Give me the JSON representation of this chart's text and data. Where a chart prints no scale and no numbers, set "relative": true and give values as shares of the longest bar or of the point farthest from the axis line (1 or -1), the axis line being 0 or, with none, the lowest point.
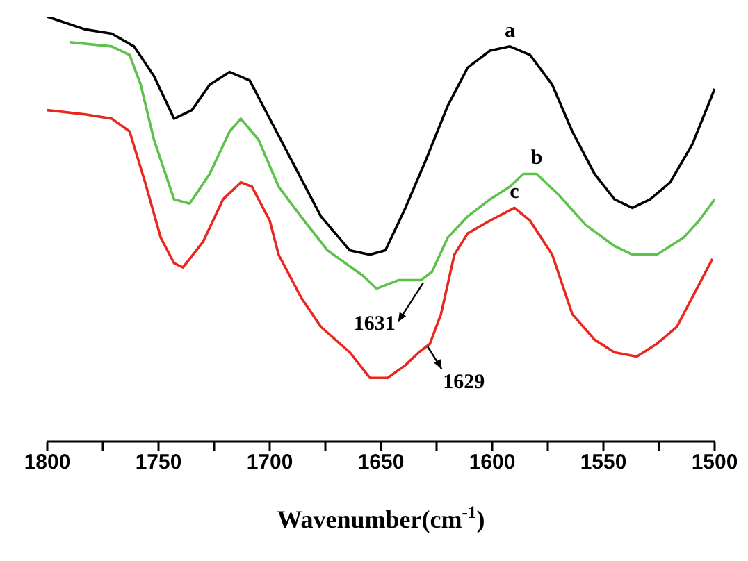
{
  "chart_data": {
    "type": "line",
    "relative": true,
    "xlabel": "Wavenumber(cm$^{-1}$)",
    "xlim": [
      1800,
      1500
    ],
    "xticks": [
      1800,
      {
        "value": 1775,
        "label": null
      },
      1750,
      {
        "value": 1725,
        "label": null
      },
      1700,
      {
        "value": 1675,
        "label": null
      },
      1650,
      {
        "value": 1625,
        "label": null
      },
      1600,
      {
        "value": 1575,
        "label": null
      },
      1550,
      {
        "value": 1525,
        "label": null
      },
      1500
    ],
    "tick_labels": "x",
    "grid": false,
    "legend": false,
    "marker": "none",
    "line_style": "solid",
    "series": [
      {
        "name": "a",
        "color": "#000000",
        "x": [
          1800,
          1783,
          1771,
          1761,
          1752,
          1743,
          1735,
          1727,
          1718,
          1709,
          1697,
          1689,
          1677,
          1664,
          1655,
          1648,
          1639,
          1630,
          1620,
          1611,
          1601,
          1592,
          1583,
          1573,
          1564,
          1554,
          1545,
          1537,
          1529,
          1520,
          1510,
          1500
        ],
        "values": [
          1.0,
          0.97,
          0.96,
          0.93,
          0.86,
          0.76,
          0.78,
          0.84,
          0.87,
          0.85,
          0.73,
          0.65,
          0.53,
          0.45,
          0.44,
          0.45,
          0.55,
          0.66,
          0.79,
          0.88,
          0.92,
          0.93,
          0.91,
          0.84,
          0.73,
          0.63,
          0.57,
          0.55,
          0.57,
          0.61,
          0.7,
          0.83
        ]
      },
      {
        "name": "b",
        "color": "#5cc24a",
        "x": [
          1790,
          1771,
          1763,
          1758,
          1752,
          1743,
          1736,
          1727,
          1718,
          1713,
          1705,
          1696,
          1686,
          1674,
          1658,
          1652,
          1642,
          1632,
          1627,
          1620,
          1611,
          1601,
          1592,
          1586,
          1580,
          1570,
          1558,
          1545,
          1537,
          1526,
          1514,
          1507,
          1500
        ],
        "values": [
          0.94,
          0.93,
          0.91,
          0.84,
          0.71,
          0.57,
          0.56,
          0.63,
          0.73,
          0.76,
          0.71,
          0.6,
          0.53,
          0.45,
          0.39,
          0.36,
          0.38,
          0.38,
          0.4,
          0.48,
          0.53,
          0.57,
          0.6,
          0.63,
          0.63,
          0.58,
          0.51,
          0.46,
          0.44,
          0.44,
          0.48,
          0.52,
          0.57
        ]
      },
      {
        "name": "c",
        "color": "#e8281e",
        "x": [
          1800,
          1783,
          1771,
          1763,
          1756,
          1749,
          1743,
          1739,
          1730,
          1721,
          1713,
          1708,
          1700,
          1696,
          1686,
          1677,
          1664,
          1655,
          1647,
          1639,
          1633,
          1628,
          1623,
          1617,
          1611,
          1601,
          1590,
          1583,
          1573,
          1564,
          1554,
          1545,
          1535,
          1526,
          1517,
          1507,
          1501
        ],
        "values": [
          0.78,
          0.77,
          0.76,
          0.73,
          0.61,
          0.48,
          0.42,
          0.41,
          0.47,
          0.57,
          0.61,
          0.6,
          0.52,
          0.44,
          0.34,
          0.27,
          0.21,
          0.15,
          0.15,
          0.18,
          0.21,
          0.23,
          0.3,
          0.44,
          0.49,
          0.52,
          0.55,
          0.52,
          0.44,
          0.3,
          0.24,
          0.21,
          0.2,
          0.23,
          0.27,
          0.37,
          0.43
        ]
      }
    ],
    "annotations": [
      {
        "text": "1631",
        "x": 1631,
        "y": 0.38
      },
      {
        "text": "1629",
        "x": 1629,
        "y": 0.23
      }
    ]
  }
}
